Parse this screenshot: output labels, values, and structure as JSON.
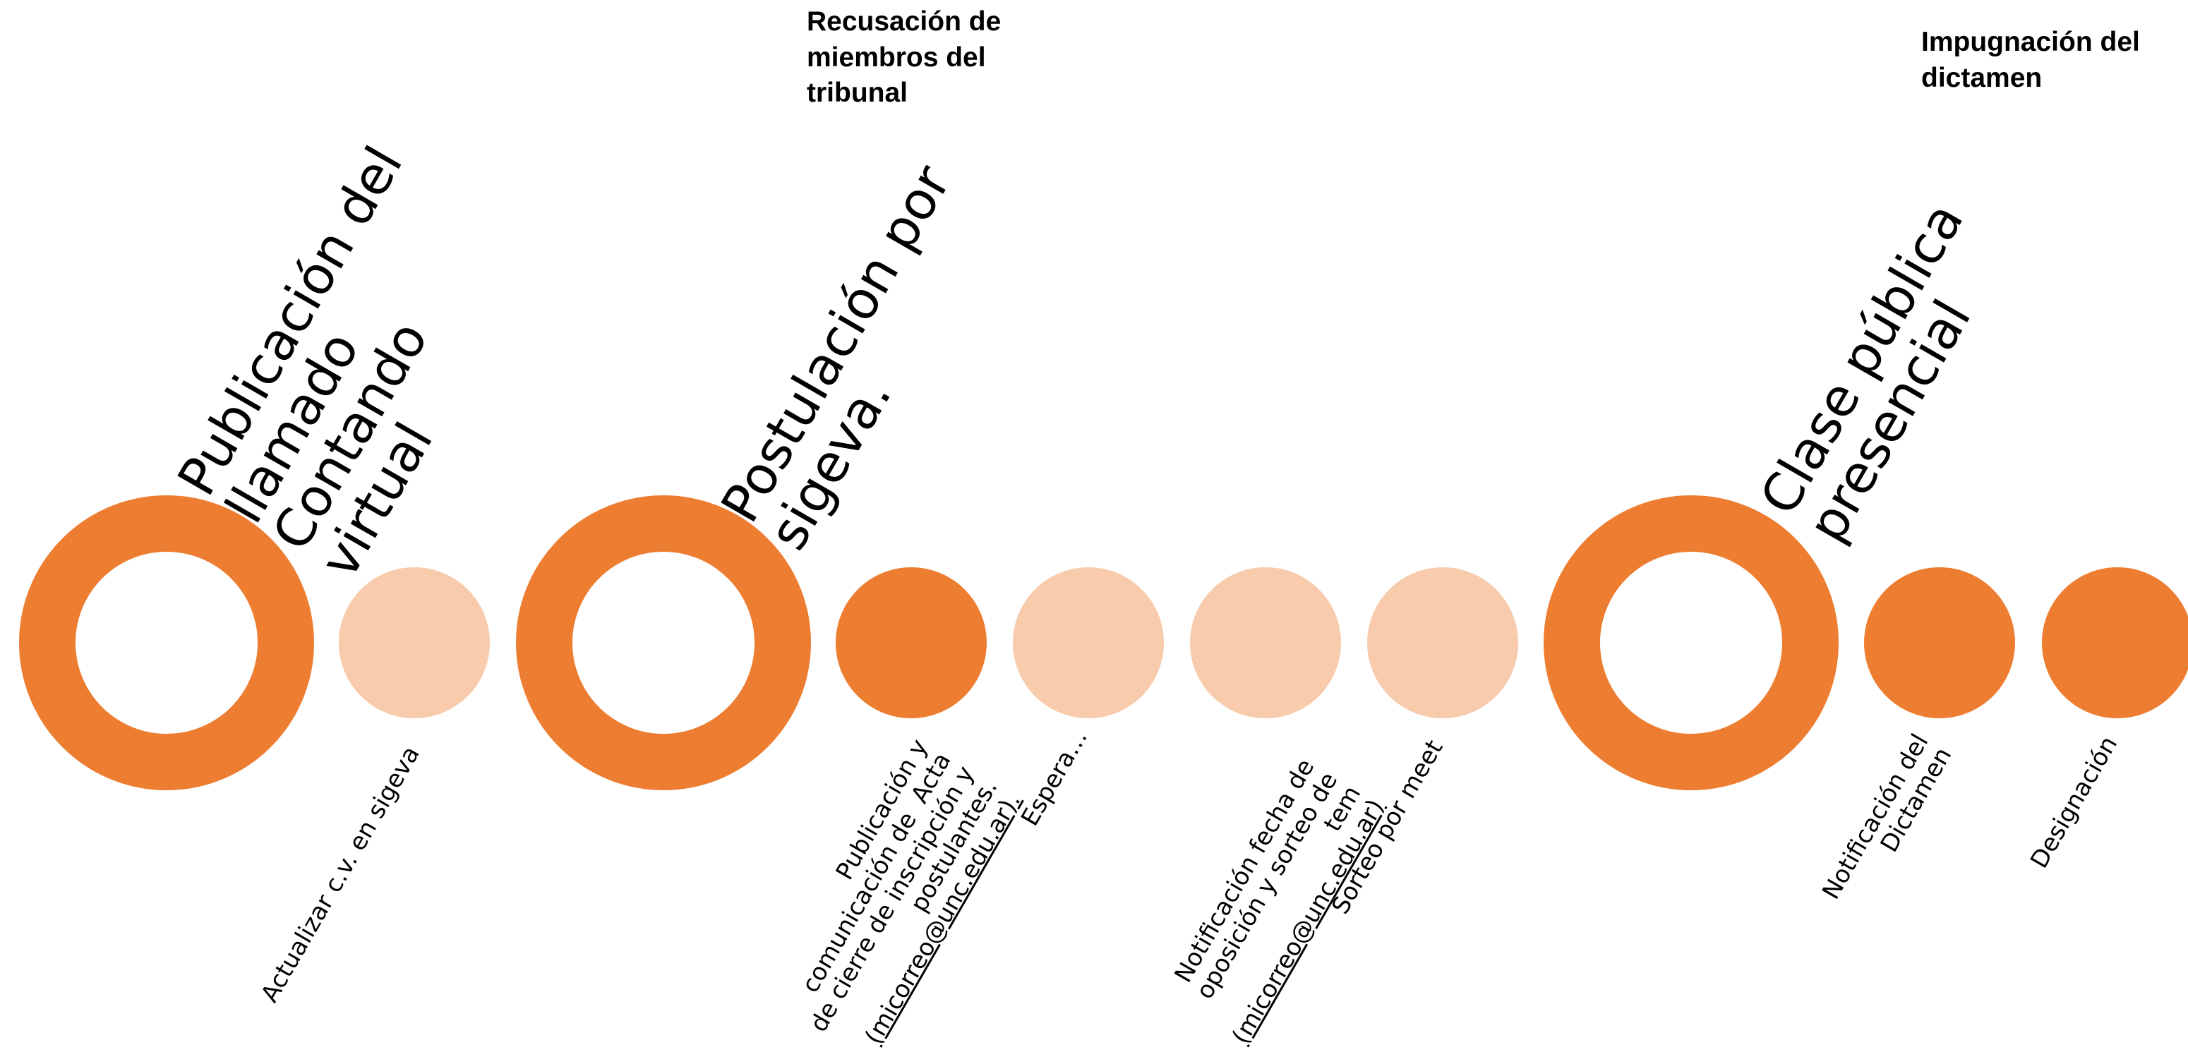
{
  "colors": {
    "accent": "#ED7D31",
    "light": "#F7CBAC",
    "text": "#000000"
  },
  "milestones": {
    "publicacion": "Publicación del\nllamado\nContando\nvirtual",
    "postulacion": "Postulación por\nsigeva.",
    "clase": "Clase pública\npresencial"
  },
  "recusacion": "Recusación de\nmiembros del\ntribunal",
  "impugnacion": "Impugnación del\ndictamen",
  "steps": {
    "actualizar": "Actualizar c.v. en sigeva",
    "publicacion_acta_1": "Publicación y\ncomunicación de  Acta\nde cierre de inscripción y\npostulantes.",
    "publicacion_acta_email": "(micorreo@unc.edu.ar).",
    "espera": "Espera…",
    "notificacion_1": "Notificación fecha de\noposición y sorteo de\ntem",
    "notificacion_email": "(micorreo@unc.edu.ar)",
    "sorteo": "Sorteo por meet",
    "notificacion_dictamen": "Notificación del\nDictamen",
    "designacion": "Designación"
  }
}
